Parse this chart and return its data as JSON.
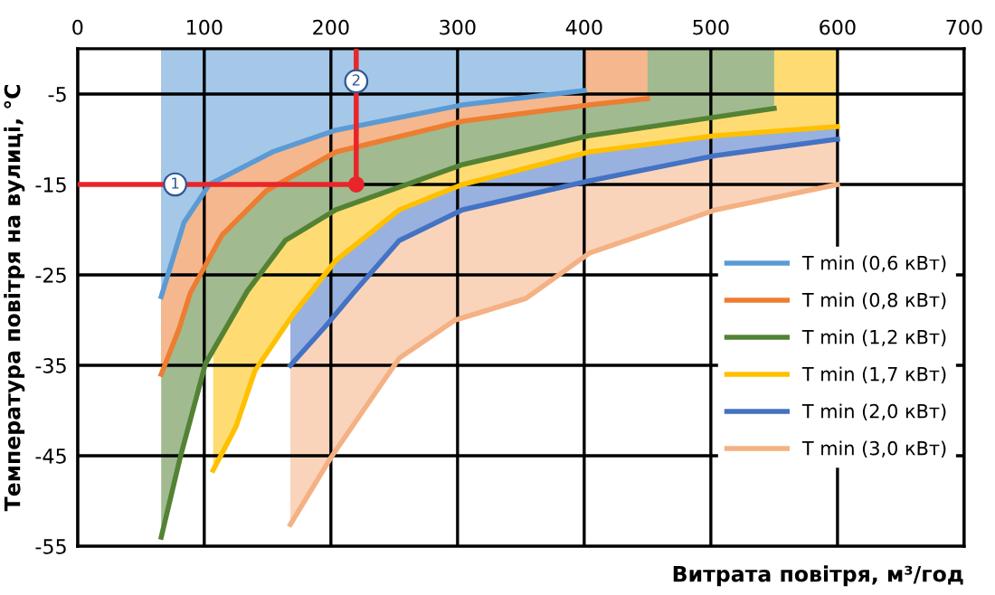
{
  "chart_data": {
    "type": "area",
    "xlabel": "Витрата повітря, м³/год",
    "ylabel": "Температура повітря на вулиці, °C",
    "xlim": [
      0,
      700
    ],
    "xticks": [
      0,
      100,
      200,
      300,
      400,
      500,
      600,
      700
    ],
    "ylim": [
      -55,
      0
    ],
    "yticks": [
      -5,
      -15,
      -25,
      -35,
      -45,
      -55
    ],
    "grid": true,
    "legend": "right",
    "series": [
      {
        "name": "T min (0,6 кВт)",
        "color": "#5b9bd5",
        "x": [
          66,
          84,
          104,
          154,
          204,
          304,
          400
        ],
        "values": [
          -27.4,
          -19.2,
          -15,
          -11.4,
          -9,
          -6.2,
          -4.6
        ]
      },
      {
        "name": "T min (0,8 кВт)",
        "color": "#ed7d31",
        "x": [
          66,
          80,
          89,
          114,
          149,
          204,
          304,
          404,
          450
        ],
        "values": [
          -36,
          -31,
          -27,
          -20.6,
          -15.7,
          -11.4,
          -8,
          -6.2,
          -5.5
        ]
      },
      {
        "name": "T min (1,2 кВт)",
        "color": "#548235",
        "x": [
          66,
          81,
          101,
          134,
          164,
          204,
          304,
          404,
          550
        ],
        "values": [
          -54,
          -45.2,
          -34.8,
          -26.8,
          -21.2,
          -17.8,
          -12.8,
          -9.6,
          -6.6
        ]
      },
      {
        "name": "T min (1,7 кВт)",
        "color": "#ffc000",
        "x": [
          107,
          125,
          140,
          170,
          204,
          254,
          304,
          404,
          504,
          600
        ],
        "values": [
          -46.6,
          -41.8,
          -35.6,
          -29.4,
          -23.4,
          -17.8,
          -15,
          -11.4,
          -9.6,
          -8.6
        ]
      },
      {
        "name": "T min (2,0 кВт)",
        "color": "#4472c4",
        "x": [
          168,
          195,
          219,
          254,
          304,
          404,
          504,
          600
        ],
        "values": [
          -35,
          -30.8,
          -26.8,
          -21.2,
          -17.8,
          -14.6,
          -11.8,
          -10
        ]
      },
      {
        "name": "T min (3,0 кВт)",
        "color": "#f4b183",
        "x": [
          168,
          200,
          254,
          298,
          354,
          404,
          504,
          600
        ],
        "values": [
          -52.6,
          -45.2,
          -34.2,
          -30,
          -27.6,
          -22.6,
          -17.8,
          -15
        ]
      },
      {
        "type": "line",
        "color": "#e8262a",
        "x": [
          0,
          220,
          220
        ],
        "values": [
          -15,
          -15,
          0
        ]
      },
      {
        "type": "scatter",
        "color": "#e8262a",
        "x": [
          220
        ],
        "values": [
          -15
        ]
      }
    ],
    "annotations": [
      {
        "text": "1",
        "x": 77,
        "y": -15
      },
      {
        "text": "2",
        "x": 220,
        "y": -3.6
      }
    ]
  }
}
